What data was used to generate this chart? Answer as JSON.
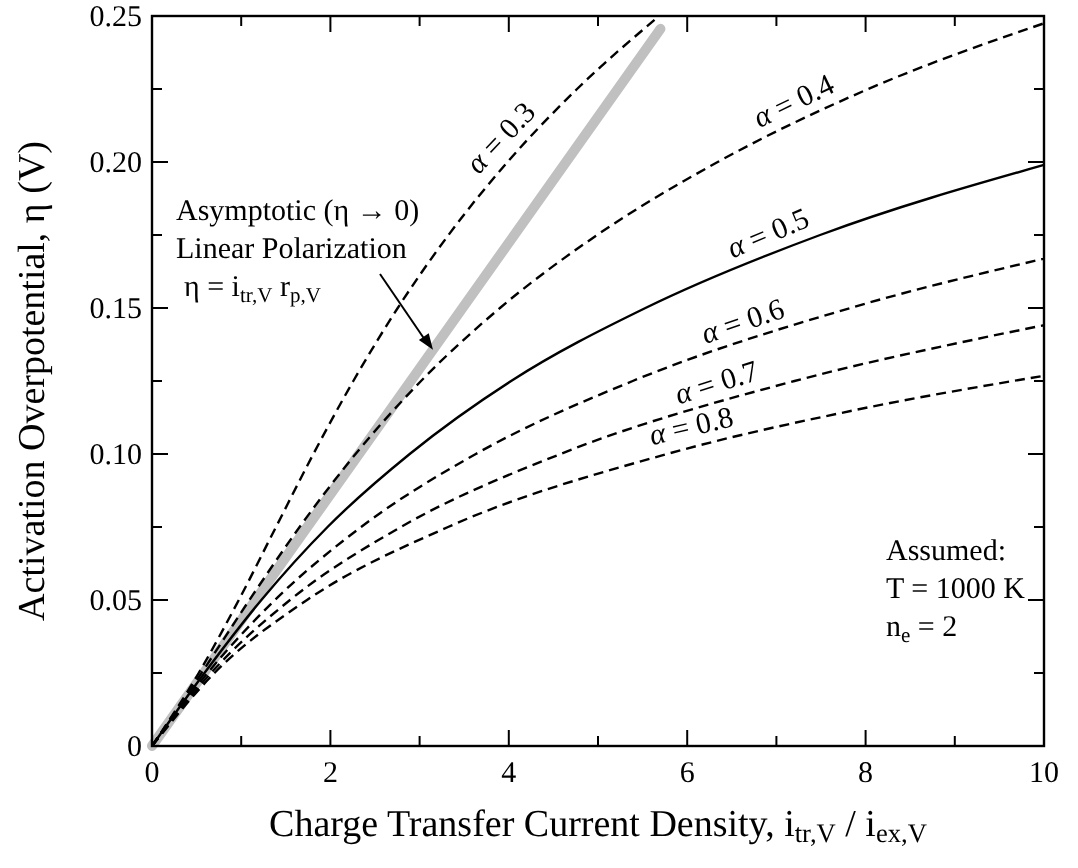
{
  "chart_data": {
    "type": "line",
    "xlabel": "Charge Transfer Current Density,  i$_{tr,V}$ / i$_{ex,V}$",
    "ylabel": "Activation Overpotential,  η  (V)",
    "xlim": [
      0,
      10
    ],
    "ylim": [
      0,
      0.25
    ],
    "xticks": [
      0,
      {
        "value": 1,
        "label": null
      },
      2,
      {
        "value": 3,
        "label": null
      },
      4,
      {
        "value": 5,
        "label": null
      },
      6,
      {
        "value": 7,
        "label": null
      },
      8,
      {
        "value": 9,
        "label": null
      },
      10
    ],
    "yticks": [
      0,
      {
        "value": 0.025,
        "label": null
      },
      {
        "value": 0.05,
        "label": "0.05"
      },
      {
        "value": 0.075,
        "label": null
      },
      {
        "value": 0.1,
        "label": "0.10"
      },
      {
        "value": 0.125,
        "label": null
      },
      {
        "value": 0.15,
        "label": "0.15"
      },
      {
        "value": 0.175,
        "label": null
      },
      {
        "value": 0.2,
        "label": "0.20"
      },
      {
        "value": 0.225,
        "label": null
      },
      0.25
    ],
    "series": [
      {
        "name": "α = 0.3",
        "color": "#000000",
        "line_style": "dashed",
        "x": [
          0,
          0.524,
          0.973,
          1.39,
          1.809,
          2.257,
          2.755,
          3.324,
          3.986,
          4.765,
          5.686
        ],
        "values": [
          0,
          0.025,
          0.05,
          0.075,
          0.1,
          0.125,
          0.15,
          0.175,
          0.2,
          0.225,
          0.25
        ]
      },
      {
        "name": "α = 0.4",
        "color": "#000000",
        "line_style": "dashed",
        "x": [
          0,
          0.555,
          1.092,
          1.655,
          2.282,
          3.016,
          3.901,
          4.99,
          6.342,
          8.03,
          10
        ],
        "values": [
          0,
          0.025,
          0.05,
          0.075,
          0.1,
          0.125,
          0.15,
          0.175,
          0.2,
          0.225,
          0.2475
        ]
      },
      {
        "name": "α = 0.5",
        "color": "#000000",
        "line_style": "solid",
        "x": [
          0,
          0.588,
          1.226,
          1.968,
          2.889,
          4.026,
          5.532,
          7.49,
          10
        ],
        "values": [
          0,
          0.025,
          0.05,
          0.075,
          0.1,
          0.125,
          0.15,
          0.175,
          0.199
        ]
      },
      {
        "name": "α = 0.6",
        "color": "#000000",
        "line_style": "dashed",
        "x": [
          0,
          0.623,
          1.378,
          2.344,
          3.63,
          5.389,
          7.829,
          10
        ],
        "values": [
          0,
          0.025,
          0.05,
          0.075,
          0.1,
          0.125,
          0.15,
          0.1669
        ]
      },
      {
        "name": "α = 0.7",
        "color": "#000000",
        "line_style": "dashed",
        "x": [
          0,
          0.661,
          1.547,
          2.79,
          4.579,
          7.203,
          9.345,
          10
        ],
        "values": [
          0,
          0.025,
          0.05,
          0.075,
          0.1,
          0.125,
          0.14,
          0.1441
        ]
      },
      {
        "name": "α = 0.8",
        "color": "#000000",
        "line_style": "dashed",
        "x": [
          0,
          0.7,
          1.738,
          3.319,
          5.775,
          7.875,
          10
        ],
        "values": [
          0,
          0.025,
          0.05,
          0.075,
          0.1,
          0.115,
          0.1268
        ]
      },
      {
        "color": "#c0c0c0",
        "line_style": "solid",
        "x": [
          0,
          5.7
        ],
        "values": [
          0,
          0.2456
        ]
      }
    ],
    "annotations": [
      {
        "text": "Asymptotic (η → 0)\nLinear Polarization\nη = i$_{tr,V}$ r$_{p,V}$",
        "x": 3.15,
        "y": 0.1357
      },
      "Assumed:\nT  = 1000 K\nn$_{e}$ = 2"
    ]
  }
}
